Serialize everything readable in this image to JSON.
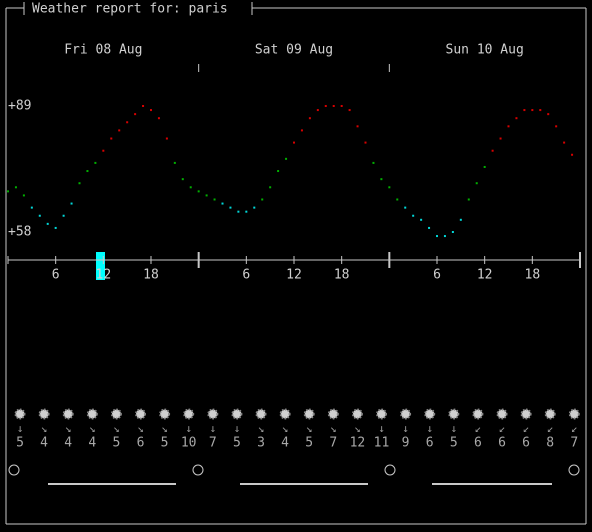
{
  "header": {
    "title": "Weather report for: paris"
  },
  "chart_data": {
    "type": "line",
    "days": [
      "Fri 08 Aug",
      "Sat 09 Aug",
      "Sun 10 Aug"
    ],
    "hour_ticks": [
      6,
      12,
      18
    ],
    "values": [
      68,
      69,
      67,
      64,
      62,
      60,
      59,
      62,
      65,
      70,
      73,
      75,
      78,
      81,
      83,
      85,
      87,
      89,
      88,
      86,
      81,
      75,
      71,
      69,
      68,
      67,
      66,
      65,
      64,
      63,
      63,
      64,
      66,
      69,
      73,
      76,
      80,
      83,
      86,
      88,
      89,
      89,
      89,
      88,
      84,
      80,
      75,
      71,
      69,
      66,
      64,
      62,
      61,
      59,
      57,
      57,
      58,
      61,
      66,
      70,
      74,
      78,
      81,
      84,
      86,
      88,
      88,
      88,
      87,
      84,
      80,
      77
    ],
    "ylim": [
      58,
      89
    ],
    "yticks": [
      {
        "value": 89,
        "label": "+89"
      },
      {
        "value": 58,
        "label": "+58"
      }
    ],
    "thresholds": [
      66,
      77
    ],
    "colors": [
      "#00d7d7",
      "#00af00",
      "#d70000"
    ]
  },
  "wind": {
    "directions": [
      "↓",
      "↘",
      "↘",
      "↘",
      "↘",
      "↘",
      "↘",
      "↓",
      "↓",
      "↓",
      "↘",
      "↘",
      "↘",
      "↘",
      "↘",
      "↓",
      "↓",
      "↓",
      "↓",
      "↙",
      "↙",
      "↙",
      "↙",
      "↙"
    ],
    "speeds": [
      "5",
      "4",
      "4",
      "4",
      "5",
      "6",
      "5",
      "10",
      "7",
      "5",
      "3",
      "4",
      "5",
      "7",
      "12",
      "11",
      "9",
      "6",
      "5",
      "6",
      "6",
      "6",
      "8",
      "7"
    ]
  }
}
